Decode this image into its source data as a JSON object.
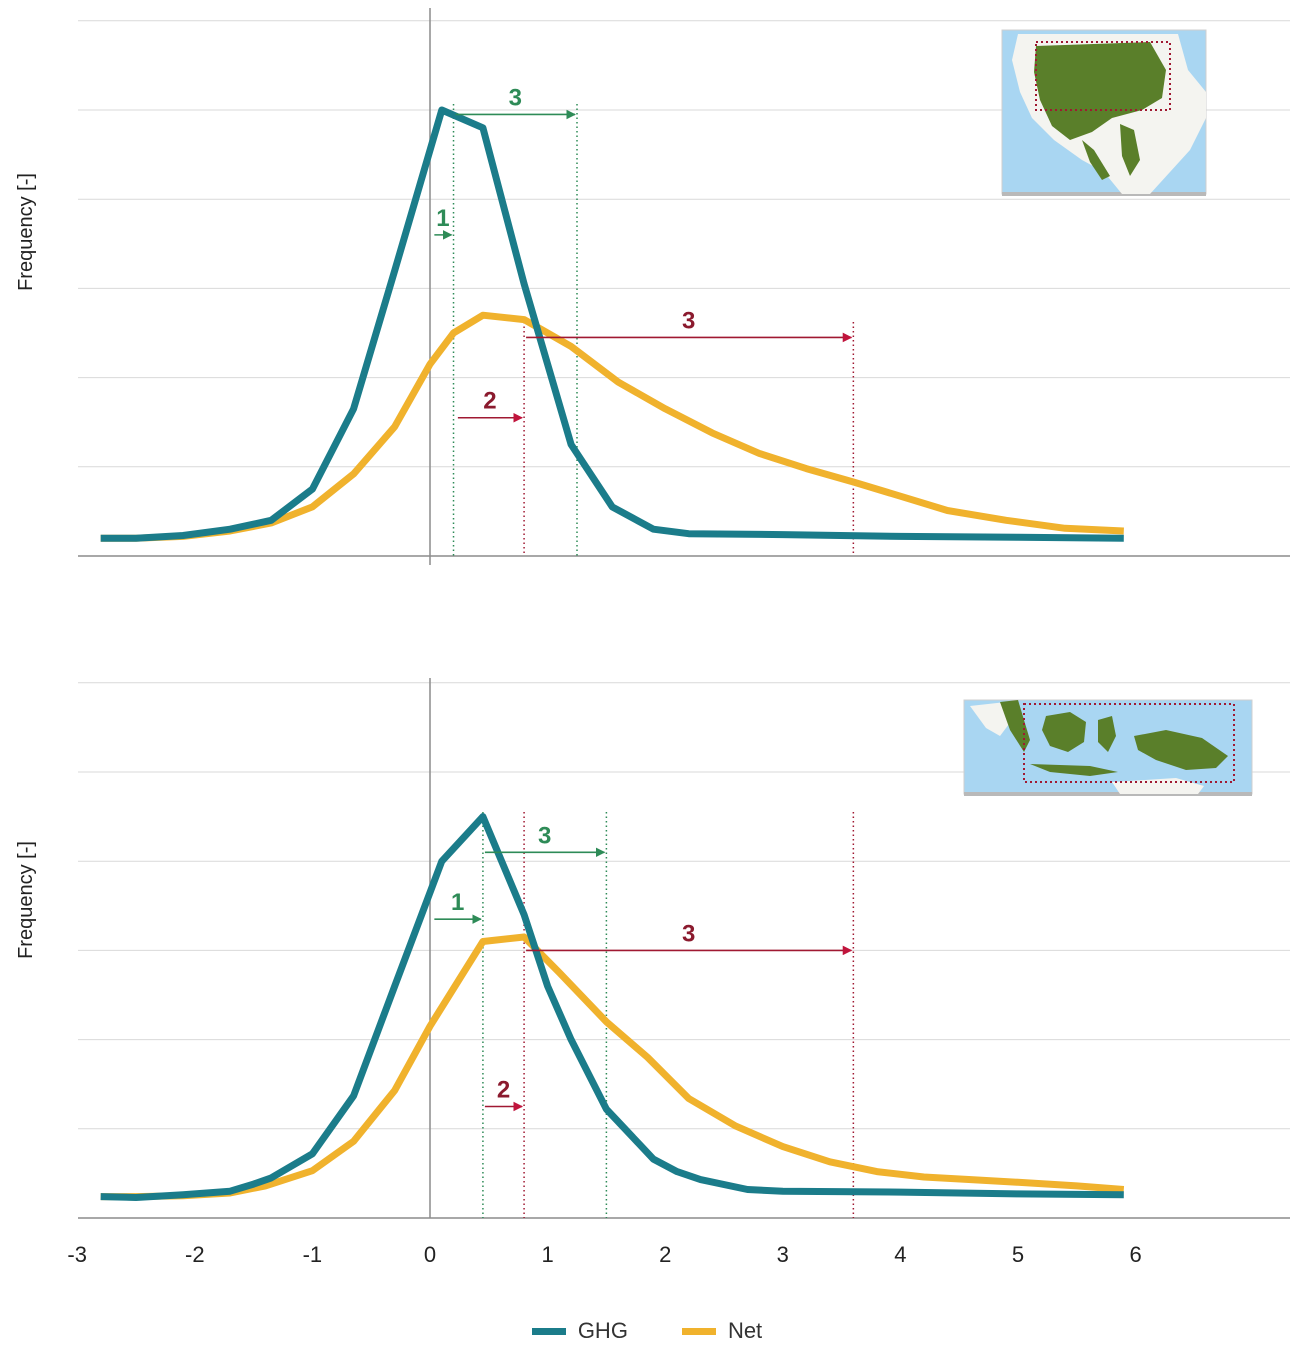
{
  "colors": {
    "ghg": "#1b7c8a",
    "net": "#f0b22d",
    "green_marker": "#2e8b57",
    "red_marker": "#a01932",
    "grid": "#d9d9d9",
    "axis": "#8c8c8c"
  },
  "legend": [
    {
      "name": "GHG",
      "color": "#1b7c8a"
    },
    {
      "name": "Net",
      "color": "#f0b22d"
    }
  ],
  "chart_data": [
    {
      "type": "line",
      "ylabel": "Frequency [-]",
      "xlim": [
        -3,
        7.3
      ],
      "ylim": [
        0,
        6.1
      ],
      "grid": true,
      "inset": "map-amazon",
      "series": [
        {
          "name": "GHG",
          "points": [
            [
              -2.8,
              0.2
            ],
            [
              -2.5,
              0.2
            ],
            [
              -2.1,
              0.23
            ],
            [
              -1.7,
              0.3
            ],
            [
              -1.35,
              0.4
            ],
            [
              -1.0,
              0.75
            ],
            [
              -0.65,
              1.65
            ],
            [
              -0.3,
              3.2
            ],
            [
              0.1,
              5.0
            ],
            [
              0.45,
              4.8
            ],
            [
              0.8,
              3.05
            ],
            [
              1.2,
              1.25
            ],
            [
              1.55,
              0.55
            ],
            [
              1.9,
              0.3
            ],
            [
              2.2,
              0.25
            ],
            [
              3.0,
              0.24
            ],
            [
              4.0,
              0.22
            ],
            [
              5.0,
              0.21
            ],
            [
              5.9,
              0.2
            ]
          ]
        },
        {
          "name": "Net",
          "points": [
            [
              -2.8,
              0.2
            ],
            [
              -2.5,
              0.2
            ],
            [
              -2.1,
              0.22
            ],
            [
              -1.7,
              0.28
            ],
            [
              -1.35,
              0.37
            ],
            [
              -1.0,
              0.55
            ],
            [
              -0.65,
              0.92
            ],
            [
              -0.3,
              1.45
            ],
            [
              0.0,
              2.15
            ],
            [
              0.2,
              2.5
            ],
            [
              0.45,
              2.7
            ],
            [
              0.8,
              2.65
            ],
            [
              1.2,
              2.35
            ],
            [
              1.6,
              1.95
            ],
            [
              2.0,
              1.65
            ],
            [
              2.4,
              1.38
            ],
            [
              2.8,
              1.15
            ],
            [
              3.2,
              0.98
            ],
            [
              3.6,
              0.83
            ],
            [
              4.0,
              0.67
            ],
            [
              4.4,
              0.51
            ],
            [
              4.9,
              0.4
            ],
            [
              5.4,
              0.31
            ],
            [
              5.9,
              0.28
            ]
          ]
        }
      ],
      "vlines": [
        {
          "x": 0.2,
          "color": "green"
        },
        {
          "x": 1.25,
          "color": "green"
        },
        {
          "x": 0.8,
          "color": "red"
        },
        {
          "x": 3.6,
          "color": "red"
        }
      ],
      "annotations": [
        {
          "label": "3",
          "color": "green",
          "x1": 0.2,
          "x2": 1.25,
          "y": 4.95
        },
        {
          "label": "1",
          "color": "green",
          "x1": 0.02,
          "x2": 0.2,
          "y": 3.6
        },
        {
          "label": "3",
          "color": "red",
          "x1": 0.8,
          "x2": 3.6,
          "y": 2.45
        },
        {
          "label": "2",
          "color": "red",
          "x1": 0.22,
          "x2": 0.8,
          "y": 1.55
        }
      ]
    },
    {
      "type": "line",
      "ylabel": "Frequency [-]",
      "xlim": [
        -3,
        7.3
      ],
      "ylim": [
        0,
        6.1
      ],
      "grid": true,
      "inset": "map-southeast-asia",
      "series": [
        {
          "name": "GHG",
          "points": [
            [
              -2.8,
              0.24
            ],
            [
              -2.5,
              0.23
            ],
            [
              -2.1,
              0.26
            ],
            [
              -1.7,
              0.3
            ],
            [
              -1.5,
              0.38
            ],
            [
              -1.35,
              0.45
            ],
            [
              -1.0,
              0.72
            ],
            [
              -0.65,
              1.37
            ],
            [
              -0.3,
              2.6
            ],
            [
              0.1,
              4.0
            ],
            [
              0.45,
              4.5
            ],
            [
              0.8,
              3.4
            ],
            [
              1.0,
              2.6
            ],
            [
              1.2,
              2.0
            ],
            [
              1.5,
              1.22
            ],
            [
              1.6,
              1.08
            ],
            [
              1.9,
              0.66
            ],
            [
              2.1,
              0.52
            ],
            [
              2.3,
              0.43
            ],
            [
              2.7,
              0.32
            ],
            [
              3.0,
              0.3
            ],
            [
              4.0,
              0.29
            ],
            [
              5.0,
              0.27
            ],
            [
              5.9,
              0.26
            ]
          ]
        },
        {
          "name": "Net",
          "points": [
            [
              -2.8,
              0.24
            ],
            [
              -2.5,
              0.24
            ],
            [
              -2.1,
              0.25
            ],
            [
              -1.7,
              0.28
            ],
            [
              -1.4,
              0.36
            ],
            [
              -1.0,
              0.53
            ],
            [
              -0.65,
              0.86
            ],
            [
              -0.3,
              1.43
            ],
            [
              0.0,
              2.15
            ],
            [
              0.45,
              3.1
            ],
            [
              0.8,
              3.15
            ],
            [
              1.1,
              2.75
            ],
            [
              1.5,
              2.2
            ],
            [
              1.85,
              1.8
            ],
            [
              2.2,
              1.34
            ],
            [
              2.6,
              1.03
            ],
            [
              3.0,
              0.8
            ],
            [
              3.4,
              0.63
            ],
            [
              3.8,
              0.52
            ],
            [
              4.2,
              0.46
            ],
            [
              4.6,
              0.43
            ],
            [
              5.0,
              0.4
            ],
            [
              5.5,
              0.36
            ],
            [
              5.9,
              0.32
            ]
          ]
        }
      ],
      "vlines": [
        {
          "x": 0.45,
          "color": "green"
        },
        {
          "x": 1.5,
          "color": "green"
        },
        {
          "x": 0.8,
          "color": "red"
        },
        {
          "x": 3.6,
          "color": "red"
        }
      ],
      "annotations": [
        {
          "label": "3",
          "color": "green",
          "x1": 0.45,
          "x2": 1.5,
          "y": 4.1
        },
        {
          "label": "1",
          "color": "green",
          "x1": 0.02,
          "x2": 0.45,
          "y": 3.35
        },
        {
          "label": "3",
          "color": "red",
          "x1": 0.8,
          "x2": 3.6,
          "y": 3.0
        },
        {
          "label": "2",
          "color": "red",
          "x1": 0.45,
          "x2": 0.8,
          "y": 1.25
        }
      ]
    }
  ],
  "x_ticks": [
    "-3",
    "-2",
    "-1",
    "0",
    "1",
    "2",
    "3",
    "4",
    "5",
    "6"
  ]
}
